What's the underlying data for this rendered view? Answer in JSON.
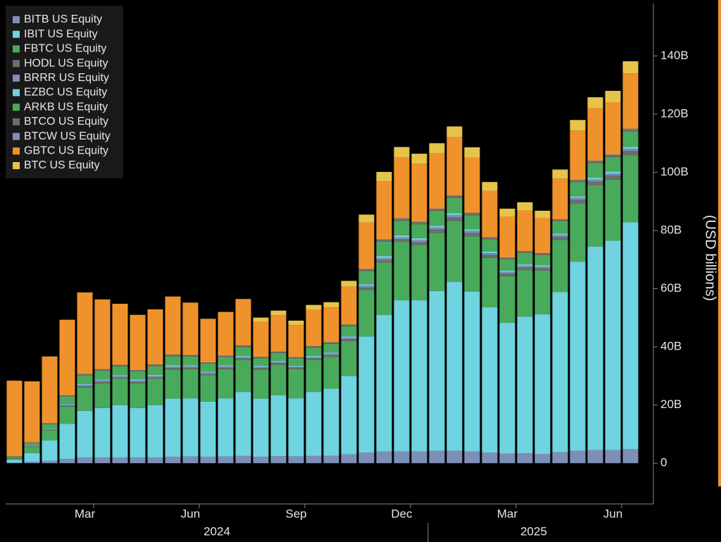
{
  "chart_data": {
    "type": "stacked_bar",
    "y_axis_label": "(USD billions)",
    "categories": [
      null,
      null,
      null,
      null,
      "Mar",
      null,
      null,
      null,
      null,
      null,
      "Jun",
      null,
      null,
      null,
      null,
      null,
      "Sep",
      null,
      null,
      null,
      null,
      null,
      "Dec",
      null,
      null,
      null,
      null,
      null,
      "Mar",
      null,
      null,
      null,
      null,
      null,
      "Jun",
      null
    ],
    "x_groups": [
      {
        "label": "2024",
        "count": 24
      },
      {
        "label": "2025",
        "count": 12
      }
    ],
    "series": [
      {
        "name": "BITB US Equity",
        "color": "#7d8fb5",
        "values": [
          0.2,
          0.5,
          0.8,
          1.5,
          2,
          2,
          2,
          2,
          2,
          2.2,
          2.3,
          2.2,
          2.3,
          2.5,
          2.2,
          2.4,
          2.3,
          2.5,
          2.6,
          3,
          3.6,
          4,
          4,
          4,
          4.2,
          4.3,
          4,
          3.6,
          3.3,
          3.4,
          3.2,
          3.8,
          4.3,
          4.5,
          4.5,
          4.8
        ]
      },
      {
        "name": "IBIT US Equity",
        "color": "#6fd3e0",
        "values": [
          1,
          3,
          7,
          12,
          16,
          17,
          18,
          17,
          18,
          20,
          20,
          19,
          20,
          22,
          20,
          21,
          20,
          22,
          23,
          27,
          40,
          47,
          52,
          52,
          55,
          58,
          55,
          50,
          45,
          47,
          48,
          55,
          65,
          70,
          72,
          78
        ]
      },
      {
        "name": "FBTC US Equity",
        "color": "#4aaa5c",
        "values": [
          0.5,
          2,
          3.5,
          6,
          8,
          8.5,
          9,
          8.5,
          9,
          10,
          10,
          9,
          10,
          11,
          10,
          10.5,
          10,
          11,
          11,
          12,
          16,
          18,
          20,
          19,
          20,
          21,
          19,
          17,
          16,
          16,
          15,
          18,
          20,
          21,
          21,
          23
        ]
      },
      {
        "name": "HODL US Equity",
        "color": "#6d6d6d",
        "values": [
          0.1,
          0.15,
          0.2,
          0.3,
          0.4,
          0.45,
          0.45,
          0.45,
          0.5,
          0.5,
          0.5,
          0.5,
          0.5,
          0.55,
          0.5,
          0.5,
          0.5,
          0.55,
          0.6,
          0.65,
          0.8,
          0.9,
          1,
          1,
          1.1,
          1.2,
          1.1,
          1,
          0.9,
          0.9,
          0.85,
          1,
          1.2,
          1.3,
          1.4,
          1.5
        ]
      },
      {
        "name": "BRRR US Equity",
        "color": "#7d8fb5",
        "values": [
          0.1,
          0.2,
          0.3,
          0.4,
          0.5,
          0.5,
          0.5,
          0.45,
          0.5,
          0.5,
          0.5,
          0.45,
          0.5,
          0.5,
          0.45,
          0.45,
          0.4,
          0.45,
          0.45,
          0.5,
          0.6,
          0.65,
          0.7,
          0.7,
          0.7,
          0.75,
          0.7,
          0.6,
          0.55,
          0.55,
          0.5,
          0.6,
          0.7,
          0.7,
          0.7,
          0.75
        ]
      },
      {
        "name": "EZBC US Equity",
        "color": "#6fd3e0",
        "values": [
          0.05,
          0.1,
          0.15,
          0.25,
          0.3,
          0.35,
          0.35,
          0.35,
          0.4,
          0.4,
          0.4,
          0.35,
          0.4,
          0.4,
          0.35,
          0.35,
          0.35,
          0.4,
          0.4,
          0.45,
          0.55,
          0.6,
          0.65,
          0.65,
          0.65,
          0.7,
          0.65,
          0.55,
          0.5,
          0.5,
          0.45,
          0.55,
          0.6,
          0.65,
          0.65,
          0.7
        ]
      },
      {
        "name": "ARKB US Equity",
        "color": "#4aaa5c",
        "values": [
          0.3,
          1,
          1.5,
          2.5,
          3,
          3,
          3,
          2.8,
          3,
          3.2,
          3,
          2.7,
          2.8,
          3,
          2.6,
          2.7,
          2.5,
          2.8,
          3,
          3.5,
          4.5,
          5,
          5,
          4.8,
          5,
          5.2,
          4.8,
          4.2,
          3.8,
          3.9,
          3.6,
          4.2,
          4.8,
          5,
          5,
          5.3
        ]
      },
      {
        "name": "BTCO US Equity",
        "color": "#6d6d6d",
        "values": [
          0.1,
          0.15,
          0.2,
          0.3,
          0.4,
          0.4,
          0.4,
          0.35,
          0.4,
          0.4,
          0.4,
          0.35,
          0.4,
          0.4,
          0.35,
          0.35,
          0.35,
          0.4,
          0.4,
          0.45,
          0.55,
          0.6,
          0.65,
          0.65,
          0.65,
          0.7,
          0.65,
          0.55,
          0.5,
          0.5,
          0.45,
          0.55,
          0.6,
          0.65,
          0.65,
          0.7
        ]
      },
      {
        "name": "BTCW US Equity",
        "color": "#7d8fb5",
        "values": [
          0.02,
          0.03,
          0.05,
          0.07,
          0.1,
          0.1,
          0.1,
          0.1,
          0.1,
          0.1,
          0.1,
          0.1,
          0.1,
          0.1,
          0.1,
          0.1,
          0.1,
          0.1,
          0.1,
          0.12,
          0.15,
          0.17,
          0.18,
          0.18,
          0.18,
          0.2,
          0.18,
          0.15,
          0.14,
          0.14,
          0.13,
          0.15,
          0.17,
          0.18,
          0.18,
          0.2
        ]
      },
      {
        "name": "GBTC US Equity",
        "color": "#f0922b",
        "values": [
          26,
          21,
          23,
          26,
          28,
          24,
          21,
          19,
          19,
          20,
          18,
          15,
          15,
          16,
          12,
          12.5,
          11,
          12.5,
          12,
          13,
          16,
          20,
          21,
          20,
          19,
          20,
          19,
          16,
          14,
          14,
          12,
          14,
          17,
          18,
          18,
          19
        ]
      },
      {
        "name": "BTC US Equity",
        "color": "#e6c44a",
        "values": [
          null,
          null,
          null,
          null,
          null,
          null,
          null,
          null,
          null,
          null,
          null,
          null,
          null,
          null,
          1.5,
          1.6,
          1.5,
          1.7,
          1.8,
          2,
          2.7,
          3.2,
          3.5,
          3.4,
          3.5,
          3.7,
          3.5,
          3,
          2.8,
          2.8,
          2.6,
          3.1,
          3.6,
          3.8,
          3.9,
          4.2
        ]
      }
    ],
    "ylim": [
      -14,
      158
    ],
    "yticks": [
      0,
      {
        "value": 20,
        "label": "20B"
      },
      {
        "value": 40,
        "label": "40B"
      },
      {
        "value": 60,
        "label": "60B"
      },
      {
        "value": 80,
        "label": "80B"
      },
      {
        "value": 100,
        "label": "100B"
      },
      {
        "value": 120,
        "label": "120B"
      },
      {
        "value": 140,
        "label": "140B"
      }
    ],
    "legend": "top-left"
  }
}
